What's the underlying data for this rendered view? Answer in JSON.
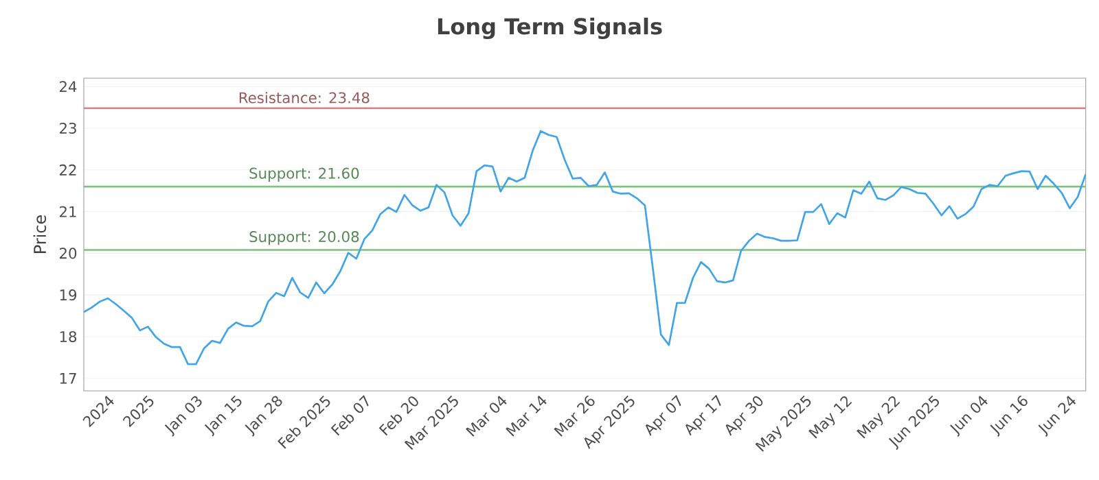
{
  "chart_data": {
    "type": "line",
    "title": "Long Term Signals",
    "ylabel": "Price",
    "categories": [
      null,
      null,
      null,
      "2024",
      null,
      null,
      null,
      null,
      "2025",
      null,
      null,
      null,
      null,
      null,
      "Jan 03",
      null,
      null,
      null,
      null,
      "Jan 15",
      null,
      null,
      null,
      null,
      "Jan 28",
      null,
      null,
      null,
      null,
      null,
      "Feb 2025",
      null,
      null,
      null,
      null,
      "Feb 07",
      null,
      null,
      null,
      null,
      null,
      "Feb 20",
      null,
      null,
      null,
      null,
      "Mar 2025",
      null,
      null,
      null,
      null,
      null,
      "Mar 04",
      null,
      null,
      null,
      null,
      "Mar 14",
      null,
      null,
      null,
      null,
      null,
      "Mar 26",
      null,
      null,
      null,
      null,
      "Apr 2025",
      null,
      null,
      null,
      null,
      null,
      "Apr 07",
      null,
      null,
      null,
      null,
      "Apr 17",
      null,
      null,
      null,
      null,
      "Apr 30",
      null,
      null,
      null,
      null,
      null,
      "May 2025",
      null,
      null,
      null,
      null,
      "May 12",
      null,
      null,
      null,
      null,
      null,
      "May 22",
      null,
      null,
      null,
      null,
      "Jun 2025",
      null,
      null,
      null,
      null,
      null,
      "Jun 04",
      null,
      null,
      null,
      null,
      "Jun 16",
      null,
      null,
      null,
      null,
      null,
      "Jun 24",
      null,
      null
    ],
    "ylim": [
      16.7,
      24.2
    ],
    "yticks": [
      17,
      18,
      19,
      20,
      21,
      22,
      23,
      24
    ],
    "grid": "y",
    "marker": "none",
    "line_style": "solid",
    "series": [
      {
        "color": "#3fa4e8",
        "values": [
          18.59,
          18.7,
          18.84,
          18.92,
          18.78,
          18.62,
          18.45,
          18.15,
          18.24,
          17.99,
          17.83,
          17.75,
          17.75,
          17.34,
          17.34,
          17.72,
          17.9,
          17.85,
          18.19,
          18.34,
          18.26,
          18.25,
          18.37,
          18.84,
          19.05,
          18.97,
          19.41,
          19.06,
          18.93,
          19.3,
          19.04,
          19.25,
          19.57,
          20.01,
          19.87,
          20.34,
          20.55,
          20.94,
          21.1,
          20.99,
          21.4,
          21.15,
          21.02,
          21.1,
          21.64,
          21.46,
          20.91,
          20.66,
          20.96,
          21.97,
          22.11,
          22.08,
          21.48,
          21.81,
          21.72,
          21.81,
          22.46,
          22.93,
          22.84,
          22.79,
          22.24,
          21.79,
          21.81,
          21.61,
          21.64,
          21.94,
          21.48,
          21.43,
          21.44,
          21.32,
          21.15,
          19.63,
          18.05,
          17.8,
          18.81,
          18.81,
          19.41,
          19.79,
          19.63,
          19.33,
          19.3,
          19.35,
          20.06,
          20.3,
          20.47,
          20.39,
          20.36,
          20.3,
          20.3,
          20.31,
          20.99,
          20.99,
          21.18,
          20.7,
          20.96,
          20.86,
          21.51,
          21.43,
          21.72,
          21.32,
          21.28,
          21.39,
          21.59,
          21.54,
          21.45,
          21.43,
          21.19,
          20.91,
          21.13,
          20.83,
          20.94,
          21.12,
          21.54,
          21.64,
          21.61,
          21.86,
          21.92,
          21.97,
          21.96,
          21.54,
          21.86,
          21.67,
          21.45,
          21.08,
          21.35,
          21.9
        ]
      }
    ],
    "ref_lines": [
      {
        "axis": "y",
        "value": 23.48,
        "label": "Resistance: 23.48",
        "color": "#e08080"
      },
      {
        "axis": "y",
        "value": 21.6,
        "label": "Support: 21.60",
        "color": "#7cc47c"
      },
      {
        "axis": "y",
        "value": 20.08,
        "label": "Support: 20.08",
        "color": "#7cc47c"
      }
    ]
  }
}
